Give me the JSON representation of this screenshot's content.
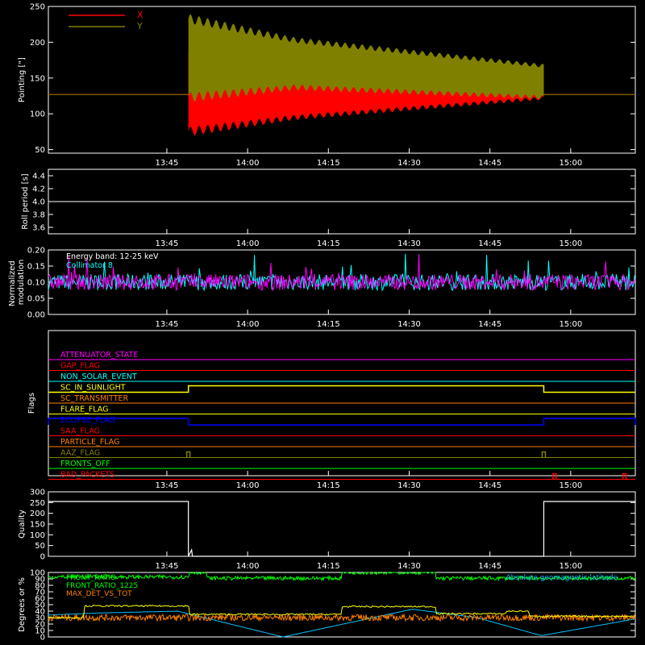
{
  "chart_data": [
    {
      "type": "line",
      "ylabel": "Pointing [\"]",
      "ylim": [
        45,
        250
      ],
      "yticks": [
        50,
        100,
        150,
        200,
        250
      ],
      "xlim": [
        "13:23",
        "15:12"
      ],
      "xticks": [
        "13:45",
        "14:00",
        "14:15",
        "14:30",
        "14:45",
        "15:00"
      ],
      "legend_position": "top-left",
      "series": [
        {
          "name": "X",
          "color": "#ff0000",
          "flat_value": 127,
          "active_start": "13:49",
          "active_end": "14:55",
          "center": [
            [
              0,
              130
            ],
            [
              0.3,
              125
            ],
            [
              1,
              142
            ]
          ],
          "amplitude": [
            [
              0,
              55
            ],
            [
              0.3,
              30
            ],
            [
              1,
              20
            ]
          ]
        },
        {
          "name": "Y",
          "color": "#808000",
          "flat_value": 127,
          "active_start": "13:49",
          "active_end": "14:55",
          "center": [
            [
              0,
              178
            ],
            [
              0.3,
              170
            ],
            [
              1,
              145
            ]
          ],
          "amplitude": [
            [
              0,
              55
            ],
            [
              0.3,
              33
            ],
            [
              1,
              22
            ]
          ]
        }
      ]
    },
    {
      "type": "line",
      "ylabel": "Roll period [s]",
      "ylim": [
        3.5,
        4.5
      ],
      "yticks": [
        3.6,
        3.8,
        4.0,
        4.2,
        4.4
      ],
      "xticks": [
        "13:45",
        "14:00",
        "14:15",
        "14:30",
        "14:45",
        "15:00"
      ],
      "series": [
        {
          "color": "#ffffff",
          "constant": 4.0
        }
      ]
    },
    {
      "type": "line",
      "ylabel": "Normalized modulation",
      "ylim": [
        0,
        0.2
      ],
      "yticks": [
        0.0,
        0.05,
        0.1,
        0.15,
        0.2
      ],
      "xticks": [
        "13:45",
        "14:00",
        "14:15",
        "14:30",
        "14:45",
        "15:00"
      ],
      "annotation": "Energy band: 12-25 keV",
      "series": [
        {
          "name": "Collimator 8",
          "color": "#00ffff",
          "mean": 0.1,
          "noise": 0.025
        },
        {
          "color": "#ff00ff",
          "mean": 0.1,
          "noise": 0.025
        }
      ]
    },
    {
      "type": "line",
      "ylabel": "Flags",
      "xticks": [
        "13:45",
        "14:00",
        "14:15",
        "14:30",
        "14:45",
        "15:00"
      ],
      "flags": [
        {
          "label": "ATTENUATOR_STATE",
          "color": "#ff00ff",
          "state": "off"
        },
        {
          "label": "GAP_FLAG",
          "color": "#ff0000",
          "state": "off"
        },
        {
          "label": "NON_SOLAR_EVENT",
          "color": "#00ffff",
          "state": "off"
        },
        {
          "label": "SC_IN_SUNLIGHT",
          "color": "#ffff00",
          "state": "on",
          "on_start": "13:49",
          "on_end": "14:55"
        },
        {
          "label": "SC_TRANSMITTER",
          "color": "#ff8000",
          "state": "off"
        },
        {
          "label": "FLARE_FLAG",
          "color": "#ffff00",
          "state": "off"
        },
        {
          "label": "ECLIPSE_FLAG",
          "color": "#0000ff",
          "state": "on",
          "on_start": "13:23",
          "on_end": "13:49",
          "on_start2": "14:55",
          "on_end2": "15:12"
        },
        {
          "label": "SAA_FLAG",
          "color": "#ff0000",
          "state": "off"
        },
        {
          "label": "PARTICLE_FLAG",
          "color": "#ff8000",
          "state": "off"
        },
        {
          "label": "AAZ_FLAG",
          "color": "#808000",
          "state": "spikes",
          "spikes": [
            "13:49",
            "14:55"
          ]
        },
        {
          "label": "FRONTS_OFF",
          "color": "#00ff00",
          "state": "off"
        },
        {
          "label": "BAD_PACKETS",
          "color": "#ff0000",
          "state": "spikes",
          "spikes": [
            "14:57",
            "15:10"
          ]
        }
      ]
    },
    {
      "type": "line",
      "ylabel": "Quality",
      "ylim": [
        0,
        300
      ],
      "yticks": [
        0,
        50,
        100,
        150,
        200,
        250,
        300
      ],
      "xticks": [
        "13:45",
        "14:00",
        "14:15",
        "14:30",
        "14:45",
        "15:00"
      ],
      "series": [
        {
          "color": "#ffffff",
          "high_value": 255,
          "low_value": 0,
          "high_start": "13:23",
          "high_end": "13:49",
          "high_start2": "14:55",
          "high_end2": "15:12"
        }
      ]
    },
    {
      "type": "line",
      "ylabel": "Degrees or %",
      "ylim": [
        0,
        100
      ],
      "yticks": [
        0,
        10,
        20,
        30,
        40,
        50,
        60,
        70,
        80,
        90,
        100
      ],
      "xticks": [
        "13:45",
        "14:00",
        "14:15",
        "14:30",
        "14:45",
        "15:00"
      ],
      "annotation": "Absolute geomagnetic latitude",
      "series": [
        {
          "name": "FRONT_RATIO",
          "color": "#00ff00",
          "levels": [
            [
              0,
              93
            ],
            [
              0.24,
              100
            ],
            [
              0.27,
              91
            ],
            [
              0.5,
              100
            ],
            [
              0.66,
              91
            ]
          ],
          "noise": 3
        },
        {
          "name": "FRONT_RATIO_1225",
          "color": "#ffff00",
          "levels": [
            [
              0,
              30
            ],
            [
              0.06,
              48
            ],
            [
              0.24,
              35
            ],
            [
              0.5,
              47
            ],
            [
              0.66,
              36
            ],
            [
              0.78,
              40
            ],
            [
              0.82,
              32
            ]
          ],
          "noise": 1.2
        },
        {
          "name": "MAX_DET_VS_TOT",
          "color": "#ff8000",
          "mean": 30,
          "noise": 5
        },
        {
          "color": "#00c0ff",
          "points": [
            [
              0,
              34
            ],
            [
              0.08,
              37
            ],
            [
              0.22,
              40
            ],
            [
              0.4,
              0
            ],
            [
              0.62,
              43
            ],
            [
              0.73,
              30
            ],
            [
              0.84,
              2
            ],
            [
              1,
              28
            ]
          ]
        }
      ]
    }
  ]
}
